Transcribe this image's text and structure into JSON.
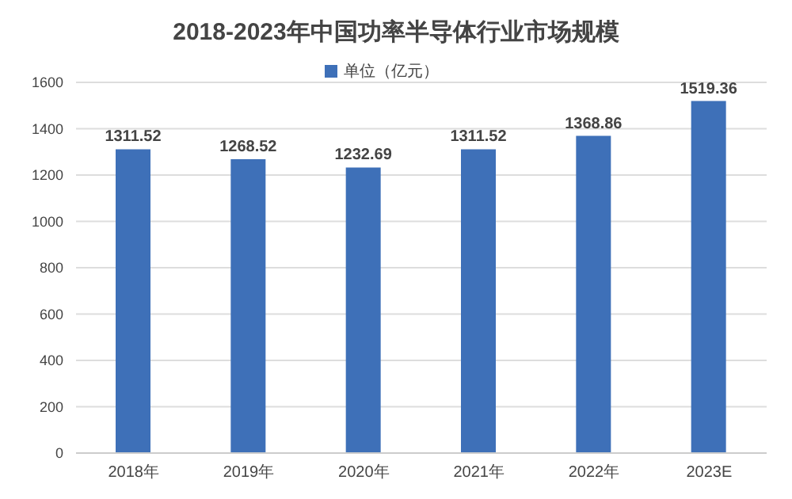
{
  "chart_data": {
    "type": "bar",
    "title": "2018-2023年中国功率半导体行业市场规模",
    "categories": [
      "2018年",
      "2019年",
      "2020年",
      "2021年",
      "2022年",
      "2023E"
    ],
    "series": [
      {
        "name": "单位（亿元）",
        "color": "#3e70b8",
        "values": [
          1311.52,
          1268.52,
          1232.69,
          1311.52,
          1368.86,
          1519.36
        ]
      }
    ],
    "ylim": [
      0,
      1600
    ],
    "yticks": [
      0,
      200,
      400,
      600,
      800,
      1000,
      1200,
      1400,
      1600
    ],
    "grid": "y",
    "legend": "top",
    "data_labels": true
  }
}
